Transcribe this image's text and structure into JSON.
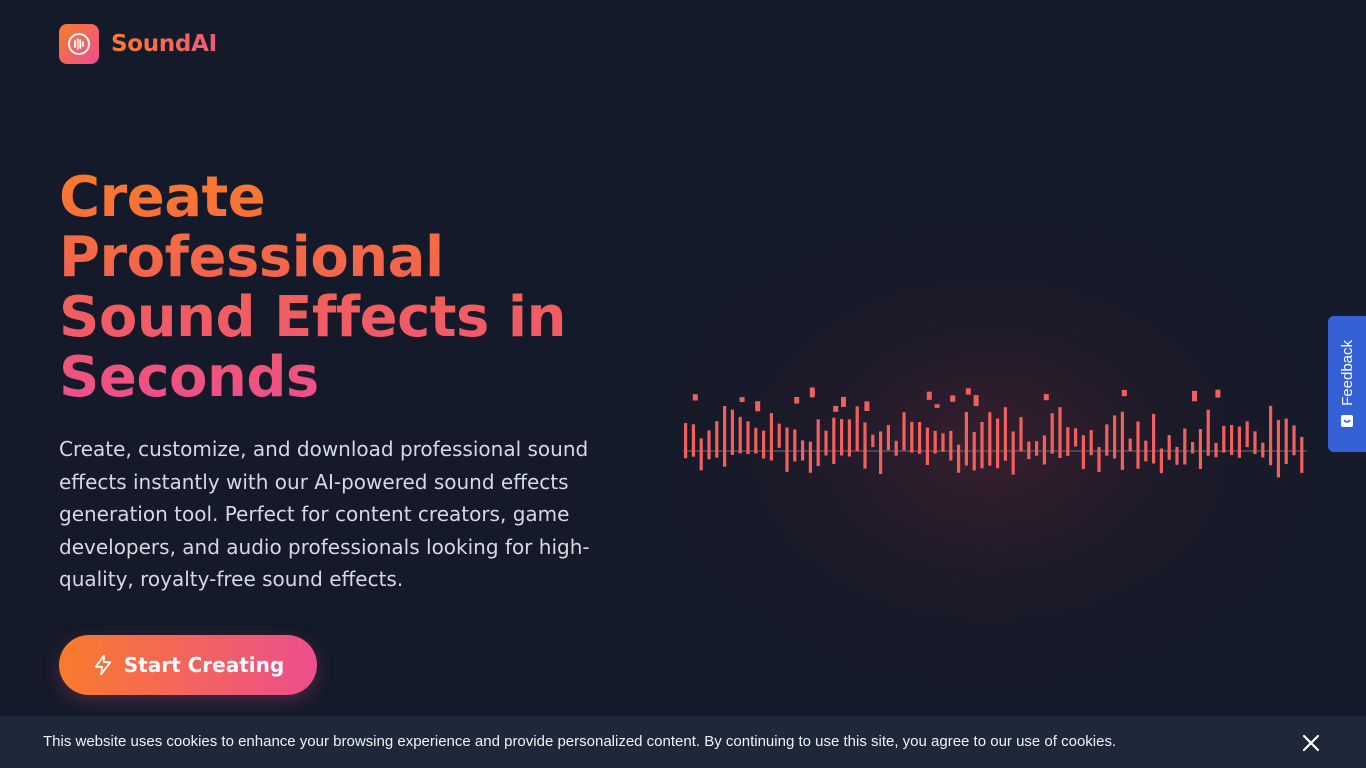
{
  "brand": {
    "name": "SoundAI",
    "icon": "sound-wave-icon"
  },
  "hero": {
    "title": "Create Professional Sound Effects in Seconds",
    "description": "Create, customize, and download professional sound effects instantly with our AI-powered sound effects generation tool. Perfect for content creators, game developers, and audio professionals looking for high-quality, royalty-free sound effects.",
    "cta_label": "Start Creating",
    "cta_icon": "lightning-icon"
  },
  "feedback": {
    "label": "Feedback",
    "icon": "feedback-icon"
  },
  "cookie": {
    "text": "This website uses cookies to enhance your browsing experience and provide personalized content. By continuing to use this site, you agree to our use of cookies.",
    "close_icon": "close-icon"
  },
  "colors": {
    "background": "#141a29",
    "accent_start": "#f97b2b",
    "accent_end": "#ec4e8e",
    "wave_bar": "#f0605c",
    "feedback_bg": "#3560d6",
    "cookie_bg": "#1f2838"
  }
}
